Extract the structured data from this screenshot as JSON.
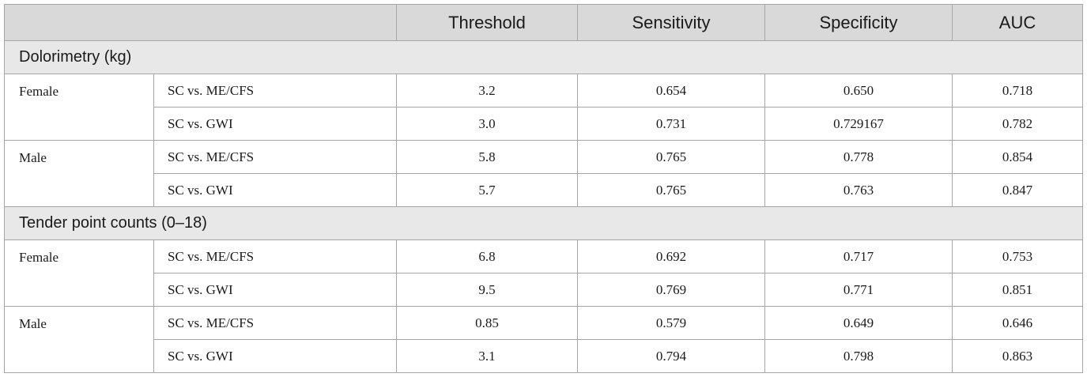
{
  "header": [
    "",
    "Threshold",
    "Sensitivity",
    "Specificity",
    "AUC"
  ],
  "sections": [
    {
      "title": "Dolorimetry (kg)",
      "groups": [
        {
          "sex": "Female",
          "rows": [
            {
              "comparison": "SC vs. ME/CFS",
              "threshold": "3.2",
              "sensitivity": "0.654",
              "specificity": "0.650",
              "auc": "0.718"
            },
            {
              "comparison": "SC vs. GWI",
              "threshold": "3.0",
              "sensitivity": "0.731",
              "specificity": "0.729167",
              "auc": "0.782"
            }
          ]
        },
        {
          "sex": "Male",
          "rows": [
            {
              "comparison": "SC vs. ME/CFS",
              "threshold": "5.8",
              "sensitivity": "0.765",
              "specificity": "0.778",
              "auc": "0.854"
            },
            {
              "comparison": "SC vs. GWI",
              "threshold": "5.7",
              "sensitivity": "0.765",
              "specificity": "0.763",
              "auc": "0.847"
            }
          ]
        }
      ]
    },
    {
      "title": "Tender point counts (0–18)",
      "groups": [
        {
          "sex": "Female",
          "rows": [
            {
              "comparison": "SC vs. ME/CFS",
              "threshold": "6.8",
              "sensitivity": "0.692",
              "specificity": "0.717",
              "auc": "0.753"
            },
            {
              "comparison": "SC vs. GWI",
              "threshold": "9.5",
              "sensitivity": "0.769",
              "specificity": "0.771",
              "auc": "0.851"
            }
          ]
        },
        {
          "sex": "Male",
          "rows": [
            {
              "comparison": "SC vs. ME/CFS",
              "threshold": "0.85",
              "sensitivity": "0.579",
              "specificity": "0.649",
              "auc": "0.646"
            },
            {
              "comparison": "SC vs. GWI",
              "threshold": "3.1",
              "sensitivity": "0.794",
              "specificity": "0.798",
              "auc": "0.863"
            }
          ]
        }
      ]
    }
  ]
}
